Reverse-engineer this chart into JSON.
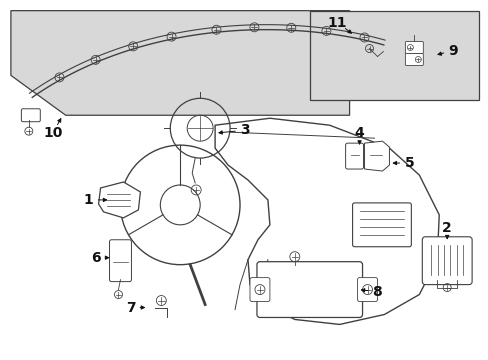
{
  "bg_color": "#ffffff",
  "line_color": "#404040",
  "shaded_bg": "#d8d8d8",
  "label_color": "#111111",
  "font_size": 10,
  "fig_w": 4.89,
  "fig_h": 3.6,
  "dpi": 100
}
